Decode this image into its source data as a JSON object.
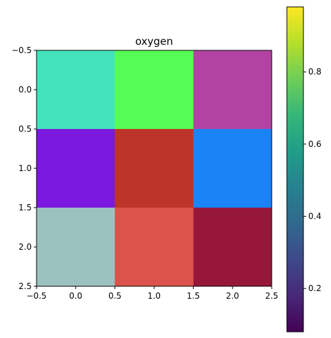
{
  "chart_data": {
    "type": "heatmap",
    "title": "oxygen",
    "xlabel": "",
    "ylabel": "",
    "xlim": [
      -0.5,
      2.5
    ],
    "ylim": [
      2.5,
      -0.5
    ],
    "x_ticks": [
      "−0.5",
      "0.0",
      "0.5",
      "1.0",
      "1.5",
      "2.0",
      "2.5"
    ],
    "y_ticks": [
      "−0.5",
      "0.0",
      "0.5",
      "1.0",
      "1.5",
      "2.0",
      "2.5"
    ],
    "grid": false,
    "cells": [
      [
        {
          "color": "#42e3bb"
        },
        {
          "color": "#55fc53"
        },
        {
          "color": "#b343a2"
        }
      ],
      [
        {
          "color": "#7c19de"
        },
        {
          "color": "#bd3429"
        },
        {
          "color": "#1a83f6"
        }
      ],
      [
        {
          "color": "#9bc2bf"
        },
        {
          "color": "#db534b"
        },
        {
          "color": "#961739"
        }
      ]
    ],
    "colorbar": {
      "colormap": "viridis",
      "range": [
        0.08,
        0.98
      ],
      "ticks": [
        {
          "value": 0.2,
          "label": "0.2"
        },
        {
          "value": 0.4,
          "label": "0.4"
        },
        {
          "value": 0.6,
          "label": "0.6"
        },
        {
          "value": 0.8,
          "label": "0.8"
        }
      ]
    }
  }
}
